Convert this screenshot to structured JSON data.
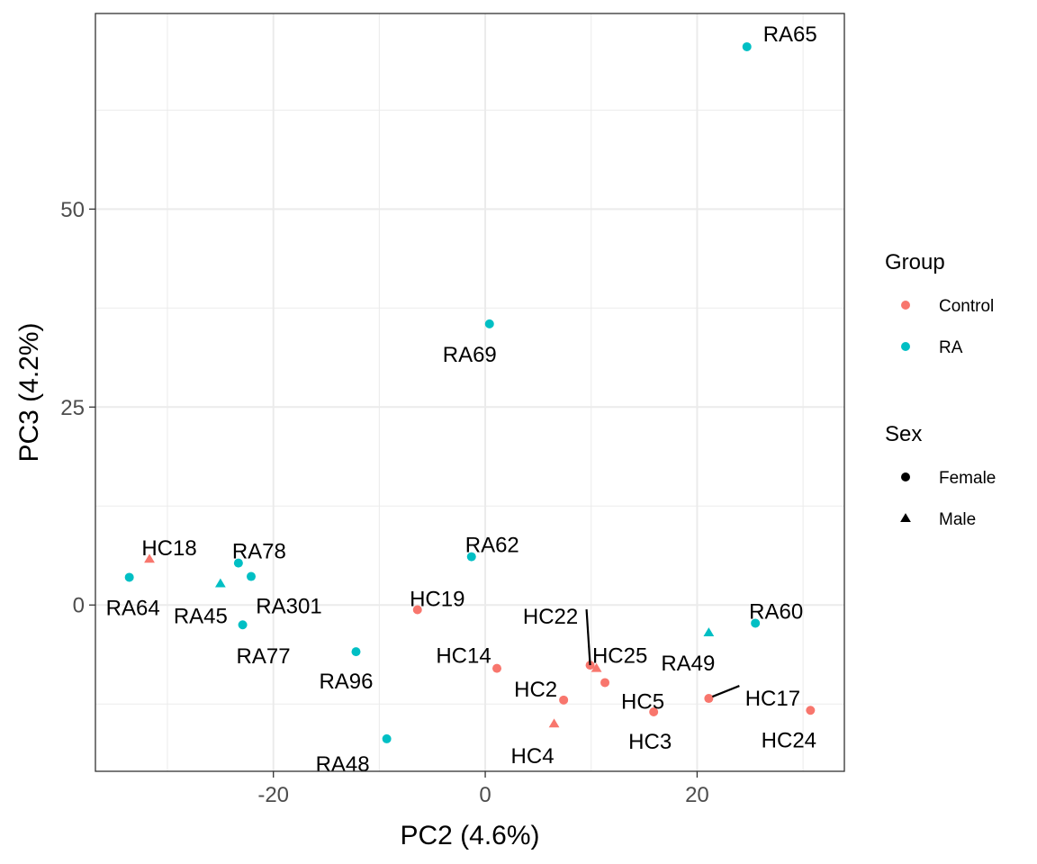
{
  "chart_data": {
    "type": "scatter",
    "title": "",
    "xlabel": "PC2 (4.6%)",
    "ylabel": "PC3 (4.2%)",
    "xlim": [
      -36.8,
      33.9
    ],
    "ylim": [
      -21.0,
      74.7
    ],
    "x_ticks": [
      -20,
      0,
      20
    ],
    "x_tick_labels": [
      "-20",
      "0",
      "20"
    ],
    "x_minor": [
      -30,
      -10,
      10,
      30
    ],
    "y_ticks": [
      0,
      25,
      50
    ],
    "y_tick_labels": [
      "0",
      "25",
      "50"
    ],
    "y_minor": [
      -12.5,
      12.5,
      37.5,
      62.5
    ],
    "grid": true,
    "legend_position": "right",
    "legends": [
      {
        "title": "Group",
        "entries": [
          {
            "label": "Control",
            "color": "#F8766D",
            "shape": "circle"
          },
          {
            "label": "RA",
            "color": "#00BFC4",
            "shape": "circle"
          }
        ]
      },
      {
        "title": "Sex",
        "entries": [
          {
            "label": "Female",
            "color": "#000000",
            "shape": "circle"
          },
          {
            "label": "Male",
            "color": "#000000",
            "shape": "triangle"
          }
        ]
      }
    ],
    "colors": {
      "Control": "#F8766D",
      "RA": "#00BFC4"
    },
    "points": [
      {
        "label": "RA65",
        "x": 24.7,
        "y": 70.5,
        "group": "RA",
        "sex": "Female"
      },
      {
        "label": "RA69",
        "x": 0.4,
        "y": 35.5,
        "group": "RA",
        "sex": "Female"
      },
      {
        "label": "HC18",
        "x": -31.7,
        "y": 5.8,
        "group": "Control",
        "sex": "Male"
      },
      {
        "label": "RA64",
        "x": -33.6,
        "y": 3.5,
        "group": "RA",
        "sex": "Female"
      },
      {
        "label": "RA45",
        "x": -25.0,
        "y": 2.7,
        "group": "RA",
        "sex": "Male"
      },
      {
        "label": "RA78",
        "x": -23.3,
        "y": 5.3,
        "group": "RA",
        "sex": "Female"
      },
      {
        "label": "RA301",
        "x": -22.1,
        "y": 3.6,
        "group": "RA",
        "sex": "Female"
      },
      {
        "label": "RA77",
        "x": -22.9,
        "y": -2.5,
        "group": "RA",
        "sex": "Female"
      },
      {
        "label": "RA96",
        "x": -12.2,
        "y": -5.9,
        "group": "RA",
        "sex": "Female"
      },
      {
        "label": "RA48",
        "x": -9.3,
        "y": -16.9,
        "group": "RA",
        "sex": "Female"
      },
      {
        "label": "RA62",
        "x": -1.3,
        "y": 6.1,
        "group": "RA",
        "sex": "Female"
      },
      {
        "label": "HC19",
        "x": -6.4,
        "y": -0.6,
        "group": "Control",
        "sex": "Female"
      },
      {
        "label": "HC14",
        "x": 1.1,
        "y": -8.0,
        "group": "Control",
        "sex": "Female"
      },
      {
        "label": "HC22",
        "x": 9.9,
        "y": -7.6,
        "group": "Control",
        "sex": "Female"
      },
      {
        "label": "HC25",
        "x": 10.5,
        "y": -8.0,
        "group": "Control",
        "sex": "Male"
      },
      {
        "label": "HC5",
        "x": 11.3,
        "y": -9.8,
        "group": "Control",
        "sex": "Female"
      },
      {
        "label": "HC2",
        "x": 7.4,
        "y": -12.0,
        "group": "Control",
        "sex": "Female"
      },
      {
        "label": "HC4",
        "x": 6.5,
        "y": -15.0,
        "group": "Control",
        "sex": "Male"
      },
      {
        "label": "HC3",
        "x": 15.9,
        "y": -13.5,
        "group": "Control",
        "sex": "Female"
      },
      {
        "label": "RA49",
        "x": 21.1,
        "y": -3.5,
        "group": "RA",
        "sex": "Male"
      },
      {
        "label": "RA60",
        "x": 25.5,
        "y": -2.3,
        "group": "RA",
        "sex": "Female"
      },
      {
        "label": "HC17",
        "x": 21.1,
        "y": -11.8,
        "group": "Control",
        "sex": "Female"
      },
      {
        "label": "HC24",
        "x": 30.7,
        "y": -13.3,
        "group": "Control",
        "sex": "Female"
      }
    ]
  }
}
